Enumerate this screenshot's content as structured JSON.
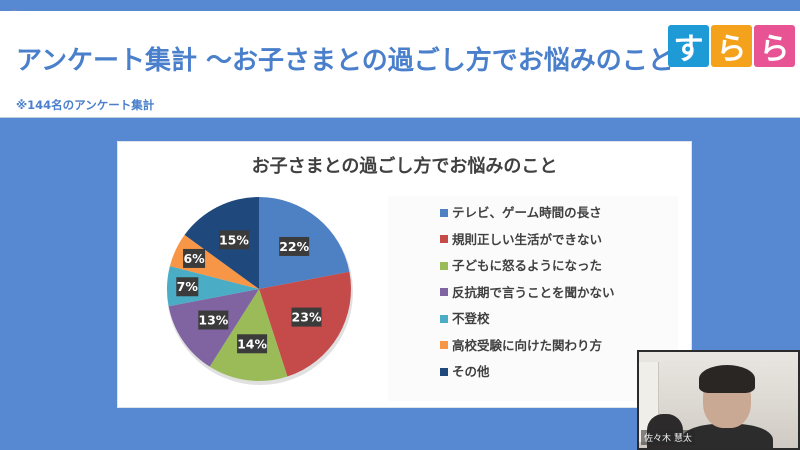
{
  "slide": {
    "title": "アンケート集計 ～お子さまとの過ごし方でお悩みのこと～",
    "subtitle": "※144名のアンケート集計",
    "logo": {
      "tiles": [
        {
          "char": "す",
          "color": "#1e9ad6"
        },
        {
          "char": "ら",
          "color": "#f4a21c"
        },
        {
          "char": "ら",
          "color": "#e85393"
        }
      ]
    }
  },
  "chart_data": {
    "type": "pie",
    "title": "お子さまとの過ごし方でお悩みのこと",
    "categories": [
      "テレビ、ゲーム時間の長さ",
      "規則正しい生活ができない",
      "子どもに怒るようになった",
      "反抗期で言うことを聞かない",
      "不登校",
      "高校受験に向けた関わり方",
      "その他"
    ],
    "values": [
      22,
      23,
      14,
      13,
      7,
      6,
      15
    ],
    "labels": [
      "22%",
      "23%",
      "14%",
      "13%",
      "7%",
      "6%",
      "15%"
    ],
    "colors": [
      "#4e81c4",
      "#c54b4b",
      "#9bbb59",
      "#8064a2",
      "#4bacc6",
      "#f79646",
      "#1f497d"
    ],
    "unit": "%",
    "start_angle": "top, clockwise",
    "legend_position": "right"
  },
  "webcam": {
    "participant_name": "佐々木 慧太"
  }
}
